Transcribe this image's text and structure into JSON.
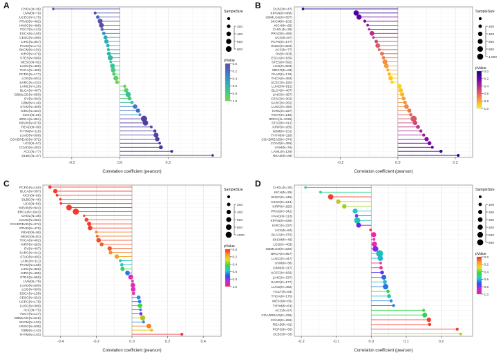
{
  "chart_data": [
    {
      "type": "lollipop-scatter",
      "panel_label": "A",
      "xlabel": "Correlation coefficient (pearson)",
      "x_ticks": [
        "-0.2",
        "0.0",
        "0.2"
      ],
      "xlim": [
        -0.32,
        0.42
      ],
      "grid_step": 0.05,
      "legend": {
        "size_title": "SampleSize",
        "size_tick_labels": [
          "200",
          "400",
          "600",
          "800"
        ],
        "size_tick_values": [
          200,
          400,
          600,
          800
        ],
        "size_max": 1000,
        "p_title": "pValue",
        "p_ticks": [
          "0.0",
          "0.2",
          "0.4",
          "0.6",
          "0.8",
          "1.0"
        ],
        "colormap": [
          "#5e4fa2",
          "#4673c6",
          "#2fa8c0",
          "#3fc98c",
          "#7ed34b"
        ]
      },
      "row_fields": [
        "label",
        "value",
        "n",
        "color"
      ],
      "rows": [
        [
          "CHOL(N=36)",
          -0.277,
          36,
          "#4f4da3"
        ],
        [
          "UVM(N=79)",
          -0.103,
          79,
          "#4c55ab"
        ],
        [
          "UCEC(N=175)",
          -0.092,
          175,
          "#4a64b8"
        ],
        [
          "PRAD(N=492)",
          -0.082,
          492,
          "#5a50a5"
        ],
        [
          "HNSC(N=498)",
          -0.077,
          498,
          "#5a4fa3"
        ],
        [
          "TGCT(N=143)",
          -0.074,
          143,
          "#4a6fc0"
        ],
        [
          "ESCA(N=180)",
          -0.067,
          180,
          "#3f8ec4"
        ],
        [
          "CESC(N=286)",
          -0.06,
          286,
          "#35a2bd"
        ],
        [
          "LIHC(N=357)",
          -0.056,
          357,
          "#2fadb6"
        ],
        [
          "PAAD(N=171)",
          -0.05,
          171,
          "#2db5ae"
        ],
        [
          "SKCM(N=102)",
          -0.048,
          102,
          "#2fbaa4"
        ],
        [
          "KIRP(N=279)",
          -0.046,
          279,
          "#30bf9c"
        ],
        [
          "STES(N=589)",
          -0.04,
          589,
          "#2cb8ab"
        ],
        [
          "MESO(N=82)",
          -0.038,
          82,
          "#3fc78d"
        ],
        [
          "LUSC(N=486)",
          -0.031,
          486,
          "#35c59a"
        ],
        [
          "THCA(N=489)",
          -0.028,
          489,
          "#48ca7f"
        ],
        [
          "PCPG(N=177)",
          -0.025,
          177,
          "#52cd73"
        ],
        [
          "LGG(N=501)",
          -0.017,
          501,
          "#5dd065"
        ],
        [
          "SARC(N=234)",
          -0.012,
          234,
          "#74d44e"
        ],
        [
          "LAML(N=126)",
          0.02,
          126,
          "#66d15c"
        ],
        [
          "BLCA(N=407)",
          0.026,
          407,
          "#5ccf68"
        ],
        [
          "GBMLGG(N=650)",
          0.034,
          650,
          "#37c0a0"
        ],
        [
          "OV(N=303)",
          0.04,
          303,
          "#4cca79"
        ],
        [
          "GBM(N=149)",
          0.05,
          149,
          "#3bbfa4"
        ],
        [
          "STAD(N=409)",
          0.063,
          409,
          "#3e78cc"
        ],
        [
          "KIRC(N=334)",
          0.075,
          334,
          "#4468c2"
        ],
        [
          "KICH(N=66)",
          0.083,
          66,
          "#3a9cc4"
        ],
        [
          "BRCA(N=981)",
          0.1,
          981,
          "#58409e"
        ],
        [
          "KIPAN(N=679)",
          0.106,
          679,
          "#533d9c"
        ],
        [
          "READ(N=90)",
          0.13,
          90,
          "#4f4aa8"
        ],
        [
          "THYM(N=118)",
          0.145,
          118,
          "#4e3f9f"
        ],
        [
          "LUAD(N=509)",
          0.15,
          509,
          "#54419f"
        ],
        [
          "COADREAD(N=372)",
          0.155,
          372,
          "#513da0"
        ],
        [
          "UCS(N=57)",
          0.165,
          57,
          "#473a96"
        ],
        [
          "COAD(N=282)",
          0.17,
          282,
          "#4c3a9a"
        ],
        [
          "ACC(N=77)",
          0.215,
          77,
          "#3f3187"
        ],
        [
          "DLBC(N=37)",
          0.385,
          37,
          "#3a2f80"
        ]
      ]
    },
    {
      "type": "lollipop-scatter",
      "panel_label": "B",
      "xlabel": "Correlation coefficient (pearson)",
      "x_ticks": [
        "-0.2",
        "0.0",
        "0.2"
      ],
      "xlim": [
        -0.36,
        0.26
      ],
      "grid_step": 0.05,
      "legend": {
        "size_title": "SampleSize",
        "size_tick_labels": [
          "200",
          "400",
          "600",
          "800",
          "1,000"
        ],
        "size_tick_values": [
          200,
          400,
          600,
          800,
          1000
        ],
        "size_max": 1100,
        "p_title": "pValue",
        "p_ticks": [
          "0.0",
          "0.2",
          "0.4",
          "0.6",
          "0.8",
          "1.0"
        ],
        "colormap": [
          "#0d0887",
          "#6a00a8",
          "#b12a90",
          "#e16462",
          "#fca636",
          "#f0f921"
        ]
      },
      "row_fields": [
        "label",
        "value",
        "n",
        "color"
      ],
      "rows": [
        [
          "DLBC(N=47)",
          -0.33,
          47,
          "#20078f"
        ],
        [
          "KIPAN(N=688)",
          -0.145,
          688,
          "#4903a0"
        ],
        [
          "GBMLGG(N=657)",
          -0.135,
          657,
          "#6100a7"
        ],
        [
          "SKCM(N=102)",
          -0.115,
          102,
          "#7d03a8"
        ],
        [
          "KICH(N=66)",
          -0.105,
          66,
          "#9511a1"
        ],
        [
          "CHOL(N=36)",
          -0.1,
          36,
          "#a62098"
        ],
        [
          "PRAD(N=495)",
          -0.09,
          495,
          "#b42e8d"
        ],
        [
          "UCS(N=57)",
          -0.085,
          57,
          "#c23c81"
        ],
        [
          "PCPG(N=177)",
          -0.075,
          177,
          "#cc4a76"
        ],
        [
          "HNSC(N=500)",
          -0.07,
          500,
          "#d65a6b"
        ],
        [
          "ACC(N=77)",
          -0.065,
          77,
          "#de6760"
        ],
        [
          "OV(N=303)",
          -0.055,
          303,
          "#e57556"
        ],
        [
          "ESCA(N=180)",
          -0.05,
          180,
          "#eb834c"
        ],
        [
          "STES(N=592)",
          -0.045,
          592,
          "#f09142"
        ],
        [
          "LGG(N=506)",
          -0.04,
          506,
          "#f49f38"
        ],
        [
          "MESO(N=83)",
          -0.035,
          83,
          "#f8ad2f"
        ],
        [
          "PAAD(N=176)",
          -0.03,
          176,
          "#fbbb26"
        ],
        [
          "THCA(N=493)",
          -0.025,
          493,
          "#fdc91e"
        ],
        [
          "UCEC(N=180)",
          -0.02,
          180,
          "#f8dd1d"
        ],
        [
          "LUAD(N=511)",
          0.005,
          511,
          "#f9d51f"
        ],
        [
          "BLCA(N=407)",
          0.01,
          407,
          "#fcc425"
        ],
        [
          "LIHC(N=367)",
          0.015,
          367,
          "#f9b52c"
        ],
        [
          "CESC(N=302)",
          0.02,
          302,
          "#f6a634"
        ],
        [
          "SARC(N=252)",
          0.025,
          252,
          "#f2973c"
        ],
        [
          "LUSC(N=490)",
          0.03,
          490,
          "#ed8845"
        ],
        [
          "KIRC(N=337)",
          0.04,
          337,
          "#e6784f"
        ],
        [
          "TGCT(N=148)",
          0.045,
          148,
          "#de695c"
        ],
        [
          "BRCA(N=1039)",
          0.055,
          1039,
          "#d45868"
        ],
        [
          "STAD(N=412)",
          0.06,
          412,
          "#ca4a74"
        ],
        [
          "KIRP(N=285)",
          0.07,
          285,
          "#bd3b82"
        ],
        [
          "GBM(N=151)",
          0.08,
          151,
          "#ad2b90"
        ],
        [
          "THYM(N=118)",
          0.09,
          118,
          "#9b189e"
        ],
        [
          "COADREAD(N=374)",
          0.1,
          374,
          "#8707a6"
        ],
        [
          "COAD(N=285)",
          0.11,
          285,
          "#7002a8"
        ],
        [
          "UVM(N=79)",
          0.12,
          79,
          "#5601a5"
        ],
        [
          "LAML(N=129)",
          0.15,
          129,
          "#3a039b"
        ],
        [
          "READ(N=89)",
          0.21,
          89,
          "#16078a"
        ]
      ]
    },
    {
      "type": "lollipop-scatter",
      "panel_label": "C",
      "xlabel": "Correlation coefficient (pearson)",
      "x_ticks": [
        "-0.4",
        "-0.2",
        "0.0",
        "0.2",
        "0.4"
      ],
      "xlim": [
        -0.5,
        0.5
      ],
      "grid_step": 0.1,
      "legend": {
        "size_title": "SampleSize",
        "size_tick_labels": [
          "200",
          "400",
          "600",
          "800",
          "1000"
        ],
        "size_tick_values": [
          200,
          400,
          600,
          800,
          1000
        ],
        "size_max": 1100,
        "p_title": "pValue",
        "p_ticks": [
          "0.0",
          "0.2",
          "0.4",
          "0.6",
          "0.8",
          "1.0"
        ],
        "colormap": [
          "#ff2020",
          "#ff9a20",
          "#e8e020",
          "#3cd63c",
          "#20d0d0",
          "#2a50f0",
          "#c028e0",
          "#ff2060"
        ]
      },
      "row_fields": [
        "label",
        "value",
        "n",
        "color"
      ],
      "rows": [
        [
          "PCPG(N=160)",
          -0.46,
          160,
          "#f5382c"
        ],
        [
          "BLCA(N=397)",
          -0.43,
          397,
          "#f43a2c"
        ],
        [
          "KICH(N=66)",
          -0.42,
          66,
          "#f43a2c"
        ],
        [
          "DLBC(N=46)",
          -0.402,
          46,
          "#f43d2a"
        ],
        [
          "UCS(N=56)",
          -0.398,
          56,
          "#f43f29"
        ],
        [
          "KIPAN(N=844)",
          -0.353,
          844,
          "#f23b2c"
        ],
        [
          "BRCA(N=1043)",
          -0.315,
          1043,
          "#f2392e"
        ],
        [
          "CHOL(N=36)",
          -0.268,
          36,
          "#f4512a"
        ],
        [
          "COAD(N=282)",
          -0.255,
          282,
          "#f4452b"
        ],
        [
          "COADREAD(N=372)",
          -0.24,
          372,
          "#f23e2c"
        ],
        [
          "PRAD(N=470)",
          -0.235,
          470,
          "#f2402c"
        ],
        [
          "READ(N=90)",
          -0.2,
          90,
          "#f58a28"
        ],
        [
          "MESO(N=81)",
          -0.195,
          81,
          "#f4702a"
        ],
        [
          "THCA(N=462)",
          -0.187,
          462,
          "#f24b2c"
        ],
        [
          "KIRP(N=283)",
          -0.17,
          283,
          "#f4602b"
        ],
        [
          "OV(N=407)",
          -0.125,
          407,
          "#f4542c"
        ],
        [
          "SARC(N=241)",
          -0.12,
          241,
          "#f58c26"
        ],
        [
          "STAD(N=402)",
          -0.085,
          402,
          "#f5a224"
        ],
        [
          "LAML(N=111)",
          -0.065,
          111,
          "#2ec9ae"
        ],
        [
          "PAAD(N=158)",
          -0.057,
          158,
          "#27c7d8"
        ],
        [
          "LIHC(N=356)",
          -0.053,
          356,
          "#3fd14c"
        ],
        [
          "KIRC(N=495)",
          -0.025,
          495,
          "#2a76e8"
        ],
        [
          "STES(N=560)",
          -0.007,
          560,
          "#e629b4"
        ],
        [
          "UVM(N=79)",
          0.003,
          79,
          "#f0398a"
        ],
        [
          "LUAD(N=500)",
          0.005,
          500,
          "#e829b8"
        ],
        [
          "LGG(N=503)",
          0.007,
          503,
          "#e02ac4"
        ],
        [
          "ESCA(N=158)",
          0.009,
          158,
          "#ee3b96"
        ],
        [
          "CESC(N=291)",
          0.037,
          291,
          "#2a8ae0"
        ],
        [
          "UCEC(N=178)",
          0.043,
          178,
          "#2a70ea"
        ],
        [
          "LUSC(N=490)",
          0.045,
          490,
          "#44d63e"
        ],
        [
          "ACC(N=75)",
          0.048,
          75,
          "#2a80e4"
        ],
        [
          "TGCT(N=147)",
          0.05,
          147,
          "#8a2ae0"
        ],
        [
          "GBMLGG(N=646)",
          0.06,
          646,
          "#b8c21e"
        ],
        [
          "SKCM(N=102)",
          0.065,
          102,
          "#2a92dc"
        ],
        [
          "HNSC(N=505)",
          0.095,
          505,
          "#f57f28"
        ],
        [
          "GBM(N=143)",
          0.11,
          143,
          "#d8d020"
        ],
        [
          "THYM(N=102)",
          0.28,
          102,
          "#f03a40"
        ]
      ]
    },
    {
      "type": "lollipop-scatter",
      "panel_label": "D",
      "xlabel": "Correlation coefficient (pearson)",
      "x_ticks": [
        "-0.2",
        "-0.1",
        "0.0",
        "0.1",
        "0.2"
      ],
      "xlim": [
        -0.22,
        0.29
      ],
      "grid_step": 0.05,
      "legend": {
        "size_title": "SampleSize",
        "size_tick_labels": [
          "100",
          "200",
          "300",
          "400",
          "500",
          "600"
        ],
        "size_tick_values": [
          100,
          200,
          300,
          400,
          500,
          600
        ],
        "size_max": 650,
        "p_title": "pValue",
        "p_ticks": [
          "0.0",
          "0.2",
          "0.4",
          "0.6",
          "0.8",
          "1.0"
        ],
        "colormap": [
          "#ff2020",
          "#ff9a20",
          "#e8e020",
          "#3cd63c",
          "#20d0d0",
          "#2a50f0",
          "#c028e0",
          "#ff2060"
        ]
      },
      "row_fields": [
        "label",
        "value",
        "n",
        "color"
      ],
      "rows": [
        [
          "CHOL(N=30)",
          -0.188,
          30,
          "#2ed674"
        ],
        [
          "KICH(N=39)",
          -0.145,
          39,
          "#2ed68a"
        ],
        [
          "HNSC(N=446)",
          -0.116,
          446,
          "#f53b2a"
        ],
        [
          "CESC(N=244)",
          -0.094,
          244,
          "#c8c21e"
        ],
        [
          "KIRP(N=260)",
          -0.077,
          260,
          "#9ed122"
        ],
        [
          "PRAD(N=341)",
          -0.046,
          341,
          "#26c2c4"
        ],
        [
          "PAAD(N=113)",
          -0.042,
          113,
          "#7a3ae0"
        ],
        [
          "KIPAN(N=636)",
          -0.04,
          636,
          "#1ec4b8"
        ],
        [
          "KIRC(N=337)",
          -0.036,
          337,
          "#6a2ae4"
        ],
        [
          "UCS(N=50)",
          -0.002,
          50,
          "#f23a50"
        ],
        [
          "BLCA(N=375)",
          0.007,
          375,
          "#ea29a8"
        ],
        [
          "SKCM(N=43)",
          0.008,
          43,
          "#ee339a"
        ],
        [
          "LGG(N=403)",
          0.009,
          403,
          "#e629b0"
        ],
        [
          "GBMLGG(N=520)",
          0.012,
          520,
          "#8428e0"
        ],
        [
          "BRCA(N=857)",
          0.024,
          857,
          "#1ebfb4"
        ],
        [
          "LUSC(N=447)",
          0.026,
          447,
          "#22b4d8"
        ],
        [
          "UVM(N=38)",
          0.027,
          38,
          "#ee3398"
        ],
        [
          "GBM(N=117)",
          0.028,
          117,
          "#e83390"
        ],
        [
          "UCEC(N=166)",
          0.031,
          166,
          "#5a3ae4"
        ],
        [
          "LIHC(N=337)",
          0.036,
          337,
          "#3064ec"
        ],
        [
          "SARC(N=177)",
          0.039,
          177,
          "#28bec0"
        ],
        [
          "LUAD(N=462)",
          0.041,
          462,
          "#2a70e8"
        ],
        [
          "TGCT(N=94)",
          0.048,
          94,
          "#3ad43c"
        ],
        [
          "THCA(N=175)",
          0.051,
          175,
          "#2cc2b0"
        ],
        [
          "MESO(N=65)",
          0.057,
          65,
          "#2a86e0"
        ],
        [
          "THYM(N=64)",
          0.064,
          64,
          "#2a7ae4"
        ],
        [
          "ACC(N=57)",
          0.15,
          57,
          "#34d648"
        ],
        [
          "COADREAD(N=336)",
          0.153,
          336,
          "#30d455"
        ],
        [
          "COAD(N=255)",
          0.165,
          255,
          "#f53b2a"
        ],
        [
          "READ(N=81)",
          0.167,
          81,
          "#f23c30"
        ],
        [
          "PCPG(N=60)",
          0.246,
          60,
          "#f43a2e"
        ],
        [
          "DLBC(N=33)",
          0.256,
          33,
          "#c0c41e"
        ]
      ]
    }
  ]
}
